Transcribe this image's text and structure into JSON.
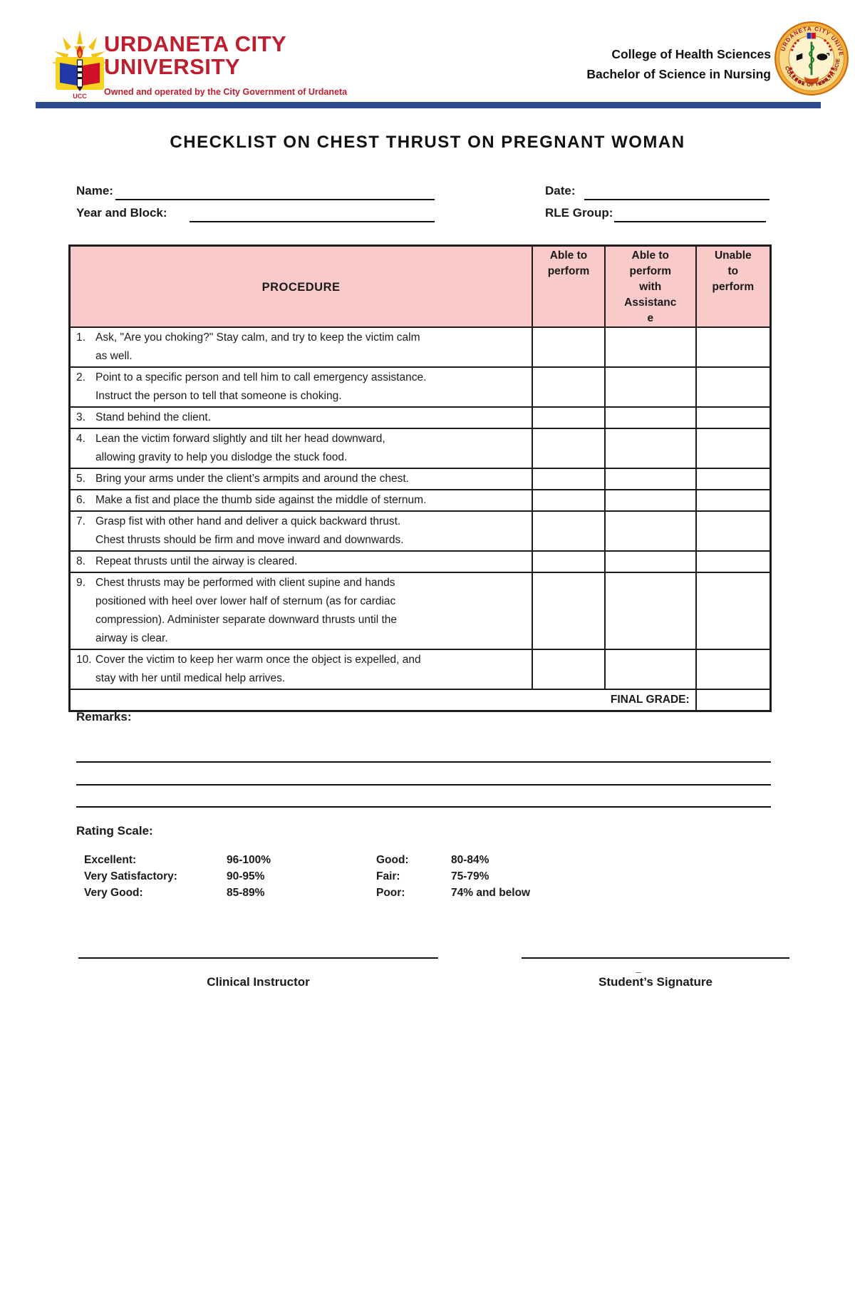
{
  "colors": {
    "brand_red": "#BE1E2D",
    "bar_blue": "#2E4A8F",
    "table_header_pink": "#F8CACA"
  },
  "header": {
    "university_name_line1": "URDANETA CITY",
    "university_name_line2": "UNIVERSITY",
    "tagline": "Owned and operated by the City Government of Urdaneta",
    "logo_caption": "UCC",
    "college": "College of Health Sciences",
    "program": "Bachelor of Science in Nursing",
    "seal_top_text": "URDANETA CITY UNIVERSITY",
    "seal_bottom_text": "COLLEGE OF HEALTH SCIENCES"
  },
  "title": "CHECKLIST ON CHEST THRUST ON PREGNANT WOMAN",
  "form_fields": {
    "name_label": "Name:",
    "date_label": "Date:",
    "year_block_label": "Year and Block:",
    "rle_group_label": "RLE Group:",
    "name_value": "",
    "date_value": "",
    "year_block_value": "",
    "rle_group_value": ""
  },
  "table": {
    "columns": [
      "PROCEDURE",
      "Able to\nperform",
      "Able to\nperform\nwith\nAssistanc\ne",
      "Unable\nto\nperform"
    ],
    "rows": [
      {
        "num": "1.",
        "text": "Ask, \"Are you choking?\" Stay calm, and try to keep the victim calm\nas well."
      },
      {
        "num": "2.",
        "text": "Point to a specific person and tell him to call emergency assistance.\nInstruct the person to tell that someone is choking."
      },
      {
        "num": "3.",
        "text": "Stand behind the client."
      },
      {
        "num": "4.",
        "text": "Lean the victim forward slightly and tilt her head downward,\nallowing gravity to help you dislodge the stuck food."
      },
      {
        "num": "5.",
        "text": "Bring your arms under the client’s armpits and around the chest."
      },
      {
        "num": "6.",
        "text": "Make a fist and place the thumb side against the middle of sternum."
      },
      {
        "num": "7.",
        "text": "Grasp fist with other hand and deliver a quick backward thrust.\nChest thrusts should be firm and move inward and downwards."
      },
      {
        "num": "8.",
        "text": "Repeat thrusts until the airway is cleared."
      },
      {
        "num": "9.",
        "text": "Chest thrusts may be performed with client supine and hands\npositioned with heel over lower half of sternum (as for cardiac\ncompression). Administer separate downward thrusts until the\nairway is clear."
      },
      {
        "num": "10.",
        "text": "Cover the victim to keep her warm once the object is expelled, and\nstay with her until medical help arrives."
      }
    ],
    "final_grade_label": "FINAL GRADE:",
    "final_grade_value": ""
  },
  "remarks": {
    "label": "Remarks:",
    "line_count": 3
  },
  "rating_scale": {
    "label": "Rating Scale:",
    "rows": [
      {
        "c1": "Excellent:",
        "v1": "96-100%",
        "c2": "Good:",
        "v2": "80-84%"
      },
      {
        "c1": "Very Satisfactory:",
        "v1": "90-95%",
        "c2": "Fair:",
        "v2": "75-79%"
      },
      {
        "c1": "Very Good:",
        "v1": "85-89%",
        "c2": "Poor:",
        "v2": "74% and below"
      }
    ]
  },
  "signatures": {
    "left_label": "Clinical Instructor",
    "right_label": "Student’s Signature",
    "stray_underscore": "_"
  }
}
